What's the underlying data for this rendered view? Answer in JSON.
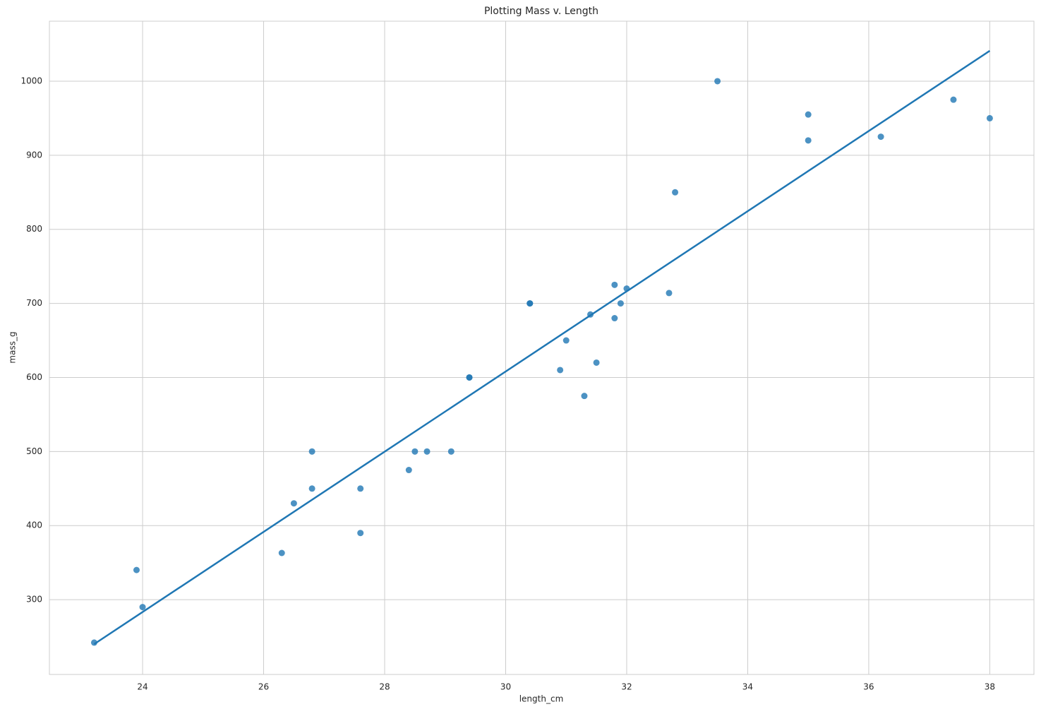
{
  "chart_data": {
    "type": "scatter",
    "title": "Plotting Mass v. Length",
    "x_label": "length_cm",
    "y_label": "mass_g",
    "x": [
      23.2,
      23.9,
      24.0,
      26.3,
      26.5,
      26.8,
      26.8,
      27.6,
      27.6,
      28.4,
      28.5,
      28.7,
      29.1,
      29.4,
      29.4,
      30.4,
      30.4,
      30.9,
      31.0,
      31.3,
      31.4,
      31.5,
      31.8,
      31.8,
      31.9,
      32.0,
      32.7,
      32.8,
      33.5,
      35.0,
      35.0,
      36.2,
      37.4,
      38.0
    ],
    "values": [
      242,
      340,
      290,
      363,
      430,
      450,
      500,
      450,
      390,
      475,
      500,
      500,
      500,
      600,
      600,
      700,
      700,
      610,
      650,
      575,
      685,
      620,
      725,
      680,
      700,
      720,
      714,
      850,
      1000,
      955,
      920,
      925,
      975,
      950
    ],
    "color": "#1f77b4",
    "regression": {
      "x": [
        23.2,
        38.0
      ],
      "values": [
        240,
        1041
      ],
      "color": "#1f77b4"
    },
    "xlim": [
      22.46,
      38.73
    ],
    "xticks": [
      24,
      26,
      28,
      30,
      32,
      34,
      36,
      38
    ],
    "ylim": [
      199,
      1081
    ],
    "yticks": [
      300,
      400,
      500,
      600,
      700,
      800,
      900,
      1000
    ],
    "grid": true
  }
}
